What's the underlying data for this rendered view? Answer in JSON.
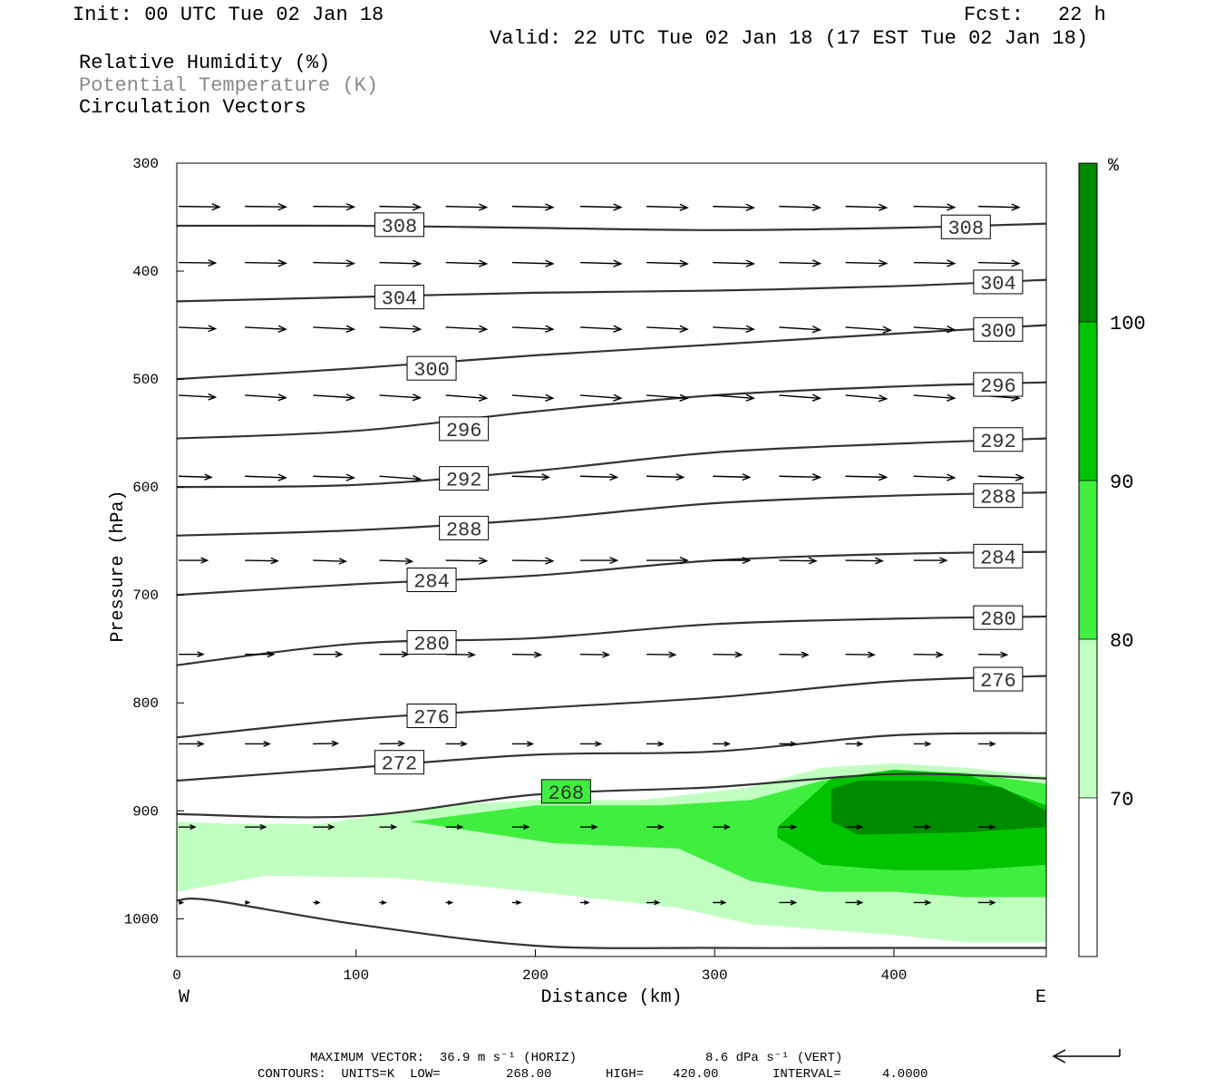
{
  "header": {
    "init": "Init: 00 UTC Tue 02 Jan 18",
    "fcst_label": "Fcst:",
    "fcst_value": "22 h",
    "valid": "Valid: 22 UTC Tue 02 Jan 18 (17 EST Tue 02 Jan 18)"
  },
  "legend_text": {
    "rh": "Relative Humidity (%)",
    "theta": "Potential Temperature (K)",
    "vectors": "Circulation Vectors"
  },
  "footer": {
    "max_vector": "MAXIMUM VECTOR:  36.9 m s⁻¹ (HORIZ)",
    "max_vert": "8.6 dPa s⁻¹ (VERT)",
    "contours_label": "CONTOURS:  UNITS=K  LOW=",
    "low": "268.00",
    "high_label": "HIGH=",
    "high": "420.00",
    "interval_label": "INTERVAL=",
    "interval": "4.0000"
  },
  "colors": {
    "rh70": "#c0ffc0",
    "rh80": "#40ee40",
    "rh90": "#00c400",
    "rh100": "#008a00",
    "contour": "#333333"
  },
  "chart_data": {
    "type": "cross-section",
    "title": "",
    "xlabel": "Distance (km)",
    "ylabel": "Pressure (hPa)",
    "x_range": [
      0,
      485
    ],
    "y_range_hPa": [
      300,
      1035
    ],
    "y_scale": "linear, inverted",
    "x_ticks": [
      "0",
      "100",
      "200",
      "300",
      "400"
    ],
    "y_ticks": [
      "300",
      "400",
      "500",
      "600",
      "700",
      "800",
      "900",
      "1000"
    ],
    "x_end_labels": {
      "left": "W",
      "right": "E"
    },
    "colorbar": {
      "unit": "%",
      "ticks": [
        "70",
        "80",
        "90",
        "100"
      ],
      "bands": [
        70,
        80,
        90,
        100
      ]
    },
    "theta_contours": [
      {
        "label": "308",
        "x": [
          0,
          100,
          200,
          300,
          400,
          485
        ],
        "p": [
          358,
          358,
          360,
          362,
          360,
          356
        ],
        "labels_at": [
          [
            112,
            357
          ],
          [
            428,
            359
          ]
        ]
      },
      {
        "label": "304",
        "x": [
          0,
          100,
          200,
          300,
          400,
          485
        ],
        "p": [
          428,
          424,
          420,
          418,
          414,
          408
        ],
        "labels_at": [
          [
            112,
            424
          ],
          [
            446,
            410
          ]
        ]
      },
      {
        "label": "300",
        "x": [
          0,
          100,
          200,
          300,
          400,
          485
        ],
        "p": [
          500,
          490,
          478,
          468,
          458,
          450
        ],
        "labels_at": [
          [
            130,
            490
          ],
          [
            446,
            454
          ]
        ]
      },
      {
        "label": "296",
        "x": [
          0,
          100,
          200,
          300,
          400,
          485
        ],
        "p": [
          555,
          548,
          530,
          515,
          507,
          503
        ],
        "labels_at": [
          [
            148,
            546
          ],
          [
            446,
            505
          ]
        ]
      },
      {
        "label": "292",
        "x": [
          0,
          100,
          200,
          300,
          400,
          485
        ],
        "p": [
          600,
          598,
          585,
          568,
          560,
          555
        ],
        "labels_at": [
          [
            148,
            592
          ],
          [
            446,
            556
          ]
        ]
      },
      {
        "label": "288",
        "x": [
          0,
          100,
          200,
          300,
          400,
          485
        ],
        "p": [
          645,
          640,
          630,
          615,
          608,
          605
        ],
        "labels_at": [
          [
            148,
            638
          ],
          [
            446,
            608
          ]
        ]
      },
      {
        "label": "284",
        "x": [
          0,
          100,
          200,
          300,
          400,
          485
        ],
        "p": [
          700,
          690,
          682,
          668,
          662,
          660
        ],
        "labels_at": [
          [
            130,
            686
          ],
          [
            446,
            664
          ]
        ]
      },
      {
        "label": "280",
        "x": [
          0,
          100,
          200,
          300,
          400,
          485
        ],
        "p": [
          765,
          745,
          740,
          727,
          722,
          720
        ],
        "labels_at": [
          [
            130,
            744
          ],
          [
            446,
            721
          ]
        ]
      },
      {
        "label": "276",
        "x": [
          0,
          100,
          200,
          300,
          400,
          485
        ],
        "p": [
          832,
          815,
          805,
          795,
          780,
          775
        ],
        "labels_at": [
          [
            130,
            812
          ],
          [
            446,
            778
          ]
        ]
      },
      {
        "label": "272",
        "x": [
          0,
          100,
          200,
          300,
          400,
          485
        ],
        "p": [
          872,
          860,
          848,
          845,
          830,
          828
        ],
        "labels_at": [
          [
            112,
            855
          ]
        ]
      },
      {
        "label": "268",
        "x": [
          0,
          100,
          200,
          300,
          400,
          485
        ],
        "p": [
          903,
          905,
          885,
          878,
          866,
          870
        ],
        "labels_at": [
          [
            205,
            882
          ]
        ]
      },
      {
        "label": "",
        "x": [
          0,
          20,
          100,
          200,
          300,
          400,
          485
        ],
        "p": [
          983,
          983,
          1005,
          1025,
          1027,
          1027,
          1027
        ],
        "labels_at": []
      }
    ],
    "wind_vectors": [
      {
        "p": 340,
        "x": [
          0,
          37,
          75,
          112,
          149,
          186,
          224,
          261,
          298,
          335,
          372,
          410,
          446
        ],
        "u": [
          1,
          1,
          1,
          1,
          1,
          1,
          1,
          1,
          1,
          1,
          1,
          1,
          1
        ],
        "w": [
          0.05,
          0.05,
          0.05,
          0.08,
          0.1,
          0.1,
          0.1,
          0.12,
          0.12,
          0.12,
          0.12,
          0.1,
          0.1
        ]
      },
      {
        "p": 392,
        "x": [
          0,
          37,
          75,
          112,
          149,
          186,
          224,
          261,
          298,
          335,
          372,
          410,
          446
        ],
        "u": [
          0.9,
          1,
          1,
          1,
          1,
          1,
          1,
          1,
          1,
          1,
          1,
          1,
          1
        ],
        "w": [
          0.05,
          0.08,
          0.1,
          0.12,
          0.12,
          0.12,
          0.12,
          0.12,
          0.12,
          0.1,
          0.1,
          0.1,
          0.1
        ]
      },
      {
        "p": 452,
        "x": [
          0,
          37,
          75,
          112,
          149,
          186,
          224,
          261,
          298,
          335,
          372,
          410,
          446
        ],
        "u": [
          0.9,
          1,
          1,
          1,
          1,
          1,
          1,
          1,
          1,
          1,
          1.1,
          1,
          1
        ],
        "w": [
          0.15,
          0.2,
          0.2,
          0.2,
          0.2,
          0.2,
          0.2,
          0.2,
          0.2,
          0.25,
          0.3,
          0.25,
          0.2
        ]
      },
      {
        "p": 515,
        "x": [
          0,
          37,
          75,
          112,
          149,
          186,
          224,
          261,
          298,
          335,
          372,
          410,
          446
        ],
        "u": [
          0.9,
          1,
          1,
          1,
          1,
          1,
          1,
          1,
          1,
          1,
          1,
          1,
          1
        ],
        "w": [
          0.2,
          0.25,
          0.25,
          0.25,
          0.3,
          0.3,
          0.3,
          0.3,
          0.3,
          0.3,
          0.35,
          0.3,
          0.3
        ]
      },
      {
        "p": 590,
        "x": [
          0,
          37,
          75,
          112,
          149,
          186,
          224,
          261,
          298,
          335,
          372,
          410,
          446
        ],
        "u": [
          0.8,
          1,
          1,
          1,
          1,
          0.9,
          0.9,
          0.9,
          0.9,
          1,
          1,
          1,
          1.1
        ],
        "w": [
          0.1,
          0.15,
          0.15,
          0.3,
          0.3,
          0.1,
          0.1,
          0.1,
          0.1,
          0.1,
          0.1,
          0.15,
          0.15
        ]
      },
      {
        "p": 668,
        "x": [
          0,
          37,
          75,
          112,
          149,
          186,
          224,
          261,
          298,
          335,
          372,
          410,
          446
        ],
        "u": [
          0.7,
          0.8,
          0.8,
          0.8,
          1,
          1,
          0.9,
          1,
          0.9,
          0.9,
          0.9,
          0.8,
          0.8
        ],
        "w": [
          0,
          0.05,
          0.1,
          0.1,
          0.05,
          0.05,
          0,
          0,
          0,
          0.05,
          0.05,
          0,
          0
        ]
      },
      {
        "p": 755,
        "x": [
          0,
          37,
          75,
          112,
          149,
          186,
          224,
          261,
          298,
          335,
          372,
          410,
          446
        ],
        "u": [
          0.6,
          0.7,
          0.7,
          0.7,
          0.7,
          0.7,
          0.7,
          0.7,
          0.7,
          0.7,
          0.7,
          0.7,
          0.7
        ],
        "w": [
          0,
          0,
          0,
          0,
          0.05,
          0.05,
          0.05,
          0.05,
          0.05,
          0.05,
          0.05,
          0.05,
          0.05
        ]
      },
      {
        "p": 838,
        "x": [
          0,
          37,
          75,
          112,
          149,
          186,
          224,
          261,
          298,
          335,
          372,
          410,
          446
        ],
        "u": [
          0.6,
          0.6,
          0.6,
          0.6,
          0.5,
          0.5,
          0.5,
          0.4,
          0.4,
          0.4,
          0.4,
          0.4,
          0.4
        ],
        "w": [
          0,
          0,
          -0.05,
          -0.05,
          0,
          0,
          0,
          0,
          0,
          0,
          0,
          0,
          0
        ]
      },
      {
        "p": 915,
        "x": [
          0,
          37,
          75,
          112,
          149,
          186,
          224,
          261,
          298,
          335,
          372,
          410,
          446
        ],
        "u": [
          0.4,
          0.5,
          0.5,
          0.4,
          0.4,
          0.4,
          0.4,
          0.4,
          0.4,
          0.4,
          0.4,
          0.4,
          0.4
        ],
        "w": [
          0,
          0,
          0,
          0,
          0,
          0,
          0,
          0,
          0,
          0,
          0,
          0,
          0
        ]
      },
      {
        "p": 985,
        "x": [
          0,
          37,
          75,
          112,
          149,
          186,
          224,
          261,
          298,
          335,
          372,
          410,
          446
        ],
        "u": [
          0.1,
          0.1,
          0.15,
          0.15,
          0.15,
          0.2,
          0.2,
          0.3,
          0.3,
          0.4,
          0.4,
          0.4,
          0.4
        ],
        "w": [
          0,
          0,
          0,
          0,
          0,
          0,
          0,
          0,
          0,
          0,
          0,
          0,
          0
        ]
      }
    ],
    "rh_regions": [
      {
        "level": 70,
        "x": [
          0,
          30,
          80,
          150,
          200,
          260,
          320,
          360,
          400,
          440,
          485,
          485,
          440,
          400,
          360,
          320,
          280,
          200,
          120,
          50,
          0
        ],
        "p": [
          910,
          912,
          912,
          895,
          890,
          890,
          878,
          860,
          856,
          860,
          868,
          1022,
          1022,
          1015,
          1010,
          1005,
          990,
          975,
          962,
          960,
          975
        ]
      },
      {
        "level": 80,
        "x": [
          130,
          200,
          270,
          320,
          360,
          400,
          440,
          485,
          485,
          440,
          400,
          360,
          320,
          280,
          210,
          150
        ],
        "p": [
          910,
          895,
          895,
          890,
          872,
          862,
          865,
          875,
          980,
          980,
          975,
          975,
          965,
          935,
          930,
          915
        ]
      },
      {
        "level": 90,
        "x": [
          335,
          365,
          400,
          440,
          485,
          485,
          440,
          400,
          360,
          335
        ],
        "p": [
          915,
          870,
          862,
          866,
          895,
          950,
          955,
          955,
          950,
          925
        ]
      },
      {
        "level": 100,
        "x": [
          365,
          380,
          420,
          460,
          485,
          485,
          440,
          380,
          365
        ],
        "p": [
          880,
          872,
          872,
          878,
          900,
          915,
          920,
          922,
          910
        ]
      }
    ]
  }
}
